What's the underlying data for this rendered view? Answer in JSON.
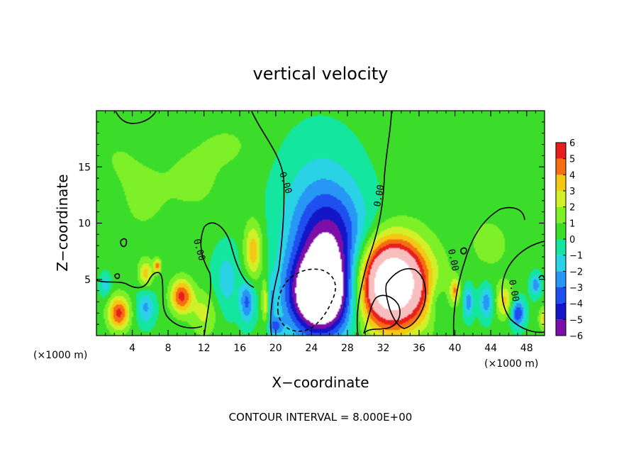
{
  "chart_data": {
    "type": "heatmap",
    "title": "vertical velocity",
    "xlabel": "X−coordinate",
    "ylabel": "Z−coordinate",
    "x_unit_left": "(×1000 m)",
    "x_unit_right": "(×1000 m)",
    "xlim": [
      0,
      50
    ],
    "ylim": [
      0,
      20
    ],
    "x_ticks": [
      4,
      8,
      12,
      16,
      20,
      24,
      28,
      32,
      36,
      40,
      44,
      48
    ],
    "y_ticks": [
      5,
      10,
      15
    ],
    "colorbar": {
      "ticks": [
        6,
        5,
        4,
        3,
        2,
        1,
        0,
        -1,
        -2,
        -3,
        -4,
        -5,
        -6
      ],
      "tick_labels": [
        "6",
        "5",
        "4",
        "3",
        "2",
        "1",
        "0",
        "−1",
        "−2",
        "−3",
        "−4",
        "−5",
        "−6"
      ],
      "range": [
        -6,
        6
      ]
    },
    "contour_labels": [
      "0.00",
      "0.00",
      "0.00",
      "0.00",
      "0.00"
    ],
    "footer": "CONTOUR INTERVAL = 8.000E+00",
    "field_features": [
      {
        "x": 25,
        "z": 3.5,
        "w": -10,
        "rx": 3.5,
        "rz": 3.5
      },
      {
        "x": 26,
        "z": 8,
        "w": -4.5,
        "rx": 4,
        "rz": 4.5
      },
      {
        "x": 25,
        "z": 11.5,
        "w": -1.8,
        "rx": 4.5,
        "rz": 6
      },
      {
        "x": 33,
        "z": 4,
        "w": 10,
        "rx": 4,
        "rz": 3.5
      },
      {
        "x": 33,
        "z": 6.5,
        "w": 3.5,
        "rx": 3.5,
        "rz": 3
      },
      {
        "x": 17.5,
        "z": 7.5,
        "w": 3.5,
        "rx": 1,
        "rz": 2.5
      },
      {
        "x": 19,
        "z": 3,
        "w": 5,
        "rx": 0.5,
        "rz": 2
      },
      {
        "x": 19.3,
        "z": 3,
        "w": -4,
        "rx": 0.5,
        "rz": 2
      },
      {
        "x": 16.8,
        "z": 3,
        "w": -3.5,
        "rx": 0.8,
        "rz": 1.8
      },
      {
        "x": 9.5,
        "z": 3.5,
        "w": 5,
        "rx": 1.2,
        "rz": 1.5
      },
      {
        "x": 2.5,
        "z": 2,
        "w": 5,
        "rx": 1.2,
        "rz": 1.5
      },
      {
        "x": 5.5,
        "z": 5.5,
        "w": 3,
        "rx": 0.8,
        "rz": 1.2
      },
      {
        "x": 6.8,
        "z": 6.2,
        "w": 4,
        "rx": 0.4,
        "rz": 0.6
      },
      {
        "x": 12,
        "z": 2,
        "w": 2,
        "rx": 1.5,
        "rz": 2
      },
      {
        "x": 14.5,
        "z": 5,
        "w": -1.8,
        "rx": 1.5,
        "rz": 3
      },
      {
        "x": 5.5,
        "z": 2.5,
        "w": -2.5,
        "rx": 1,
        "rz": 1.5
      },
      {
        "x": 1,
        "z": 4.5,
        "w": -2,
        "rx": 0.6,
        "rz": 1
      },
      {
        "x": 20,
        "z": 0.8,
        "w": -3,
        "rx": 0.8,
        "rz": 0.8
      },
      {
        "x": 40,
        "z": 4,
        "w": 3.5,
        "rx": 0.5,
        "rz": 1
      },
      {
        "x": 41.5,
        "z": 3,
        "w": -3,
        "rx": 0.6,
        "rz": 1.5
      },
      {
        "x": 43.5,
        "z": 3,
        "w": -3,
        "rx": 0.8,
        "rz": 1.5
      },
      {
        "x": 47,
        "z": 2,
        "w": -4.5,
        "rx": 0.8,
        "rz": 1.2
      },
      {
        "x": 45.5,
        "z": 3,
        "w": 3,
        "rx": 1,
        "rz": 1.5
      },
      {
        "x": 49,
        "z": 4.5,
        "w": -3,
        "rx": 0.6,
        "rz": 1
      },
      {
        "x": 50,
        "z": 1.5,
        "w": 3,
        "rx": 0.6,
        "rz": 1
      },
      {
        "x": 38,
        "z": 3,
        "w": -1.5,
        "rx": 1,
        "rz": 2
      },
      {
        "x": 11,
        "z": 14,
        "w": 0.9,
        "rx": 4,
        "rz": 4
      },
      {
        "x": 5,
        "z": 12,
        "w": 0.8,
        "rx": 3,
        "rz": 4
      },
      {
        "x": 15,
        "z": 17,
        "w": 0.7,
        "rx": 3,
        "rz": 2
      },
      {
        "x": 40,
        "z": 15,
        "w": 0.6,
        "rx": 5,
        "rz": 5
      },
      {
        "x": 44,
        "z": 8,
        "w": 0.9,
        "rx": 3,
        "rz": 3
      },
      {
        "x": 2,
        "z": 16,
        "w": 0.6,
        "rx": 3,
        "rz": 3
      }
    ]
  }
}
